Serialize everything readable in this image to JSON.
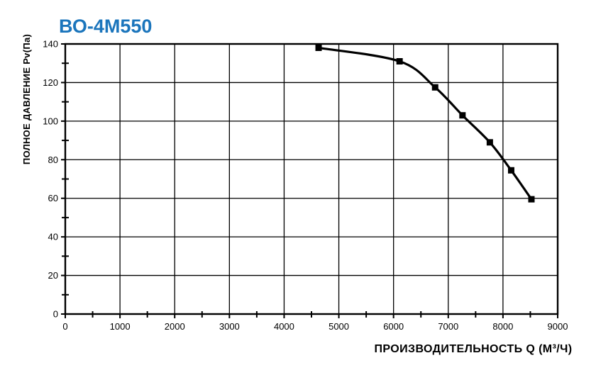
{
  "page": {
    "background_color": "#ffffff",
    "accent_color": "#1b75bc"
  },
  "chart_data": {
    "type": "line",
    "title": "ВО-4М550",
    "title_color": "#1b75bc",
    "xlabel": "ПРОИЗВОДИТЕЛЬНОСТЬ  Q  (М³/Ч)",
    "ylabel": "ПОЛНОЕ ДАВЛЕНИЕ  Pv(Па)",
    "xlim": [
      0,
      9000
    ],
    "ylim": [
      0,
      140
    ],
    "x_ticks": [
      0,
      1000,
      2000,
      3000,
      4000,
      5000,
      6000,
      7000,
      8000,
      9000
    ],
    "y_ticks": [
      0,
      20,
      40,
      60,
      80,
      100,
      120,
      140
    ],
    "x_minor_step": 500,
    "y_minor_step": 10,
    "grid": true,
    "legend": "none",
    "line_color": "#000000",
    "series": [
      {
        "name": "ВО-4М550",
        "marker": "square",
        "color": "#000000",
        "x": [
          4630,
          6110,
          6760,
          7260,
          7760,
          8150,
          8520
        ],
        "y": [
          138,
          131,
          117.5,
          103,
          89,
          74.5,
          59.5
        ]
      }
    ]
  }
}
